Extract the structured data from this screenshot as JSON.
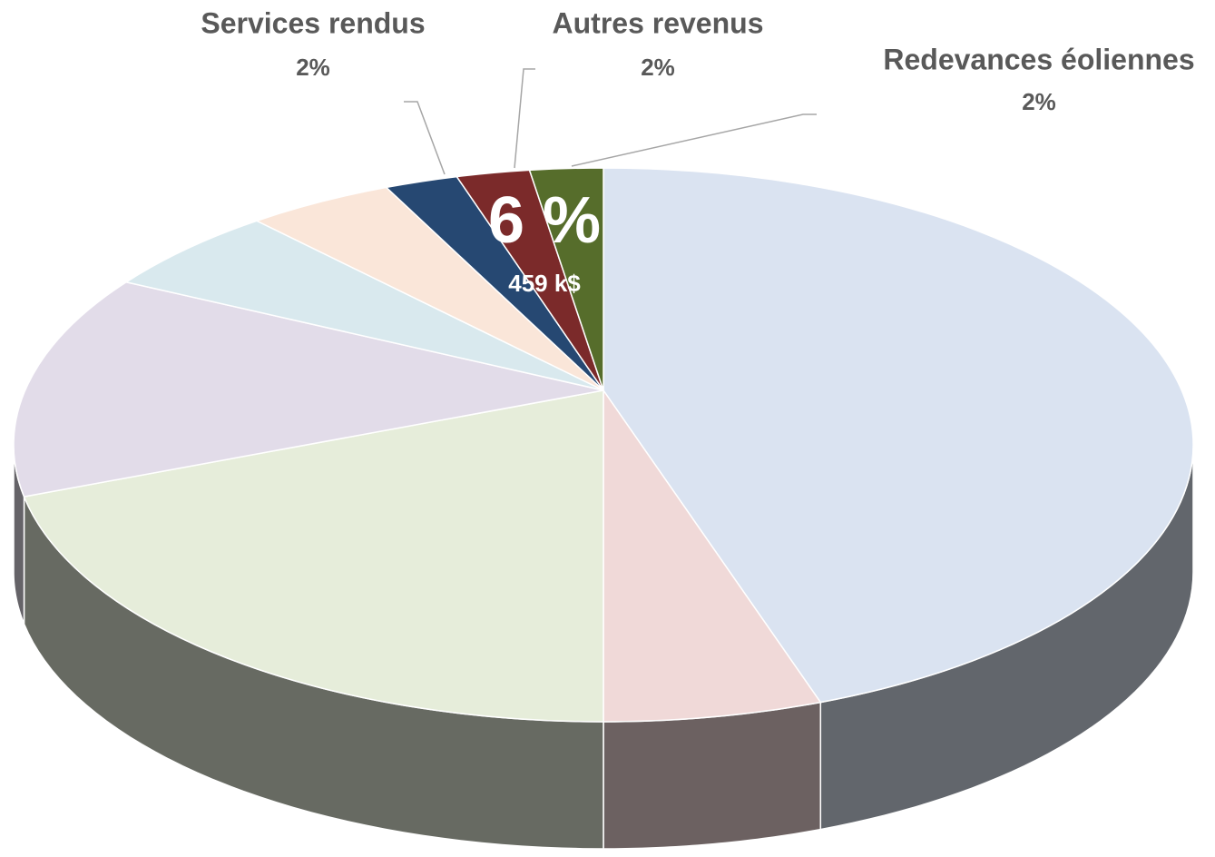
{
  "chart_data": {
    "type": "pie",
    "categories": [
      null,
      null,
      null,
      null,
      null,
      null,
      "Services rendus",
      "Autres revenus",
      "Redevances éoliennes"
    ],
    "values": [
      44,
      6,
      22,
      13,
      5,
      4,
      2,
      2,
      2
    ],
    "value_labels": [
      null,
      null,
      null,
      null,
      null,
      null,
      "2%",
      "2%",
      "2%"
    ],
    "colors": [
      "#dae3f1",
      "#f0d9d8",
      "#e6edda",
      "#e2dce9",
      "#d9e9ee",
      "#fae6d9",
      "#264872",
      "#7b2a2a",
      "#566d2b"
    ],
    "annotations": [
      "6 %",
      "459 k$"
    ]
  }
}
